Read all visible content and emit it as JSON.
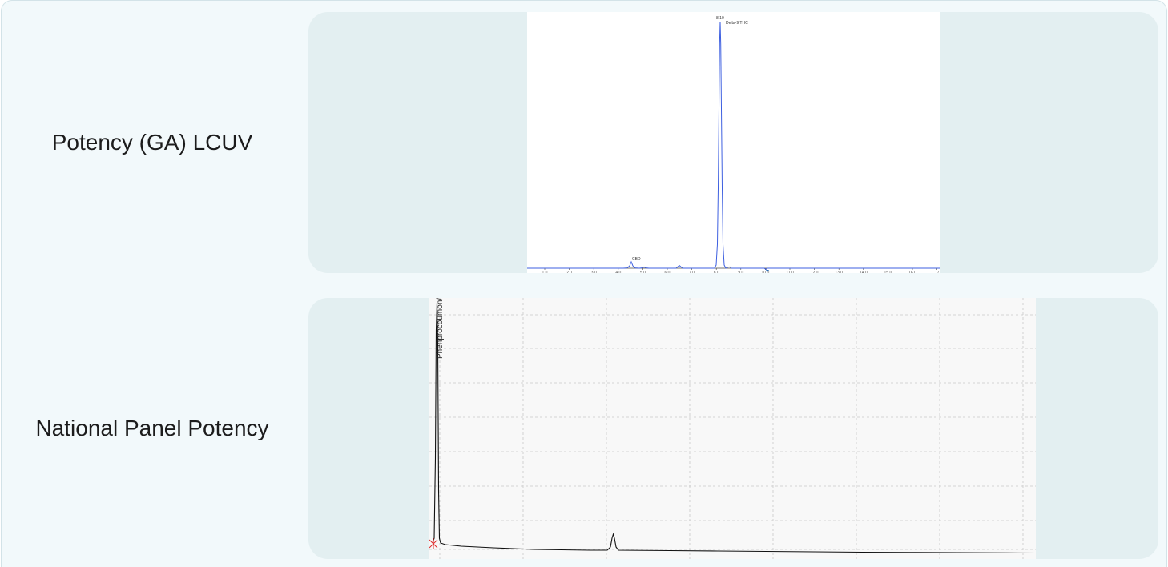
{
  "rows": [
    {
      "label": "Potency (GA) LCUV",
      "chromatogram": {
        "line_color": "#3d5fe0",
        "x_ticks": [
          "1.0",
          "2.0",
          "3.0",
          "4.0",
          "5.0",
          "6.0",
          "7.0",
          "8.0",
          "9.0",
          "10.0",
          "11.0",
          "12.0",
          "13.0",
          "14.0",
          "15.0",
          "16.0",
          "17"
        ],
        "peak_retention": "8.10",
        "peak_name": "Delta-9 THC",
        "minor_peak_name": "CBD"
      }
    },
    {
      "label": "National Panel Potency",
      "chromatogram": {
        "line_color": "#111111",
        "marker_color": "#e03030",
        "peak_name": "Phenprocoumon/"
      }
    }
  ]
}
